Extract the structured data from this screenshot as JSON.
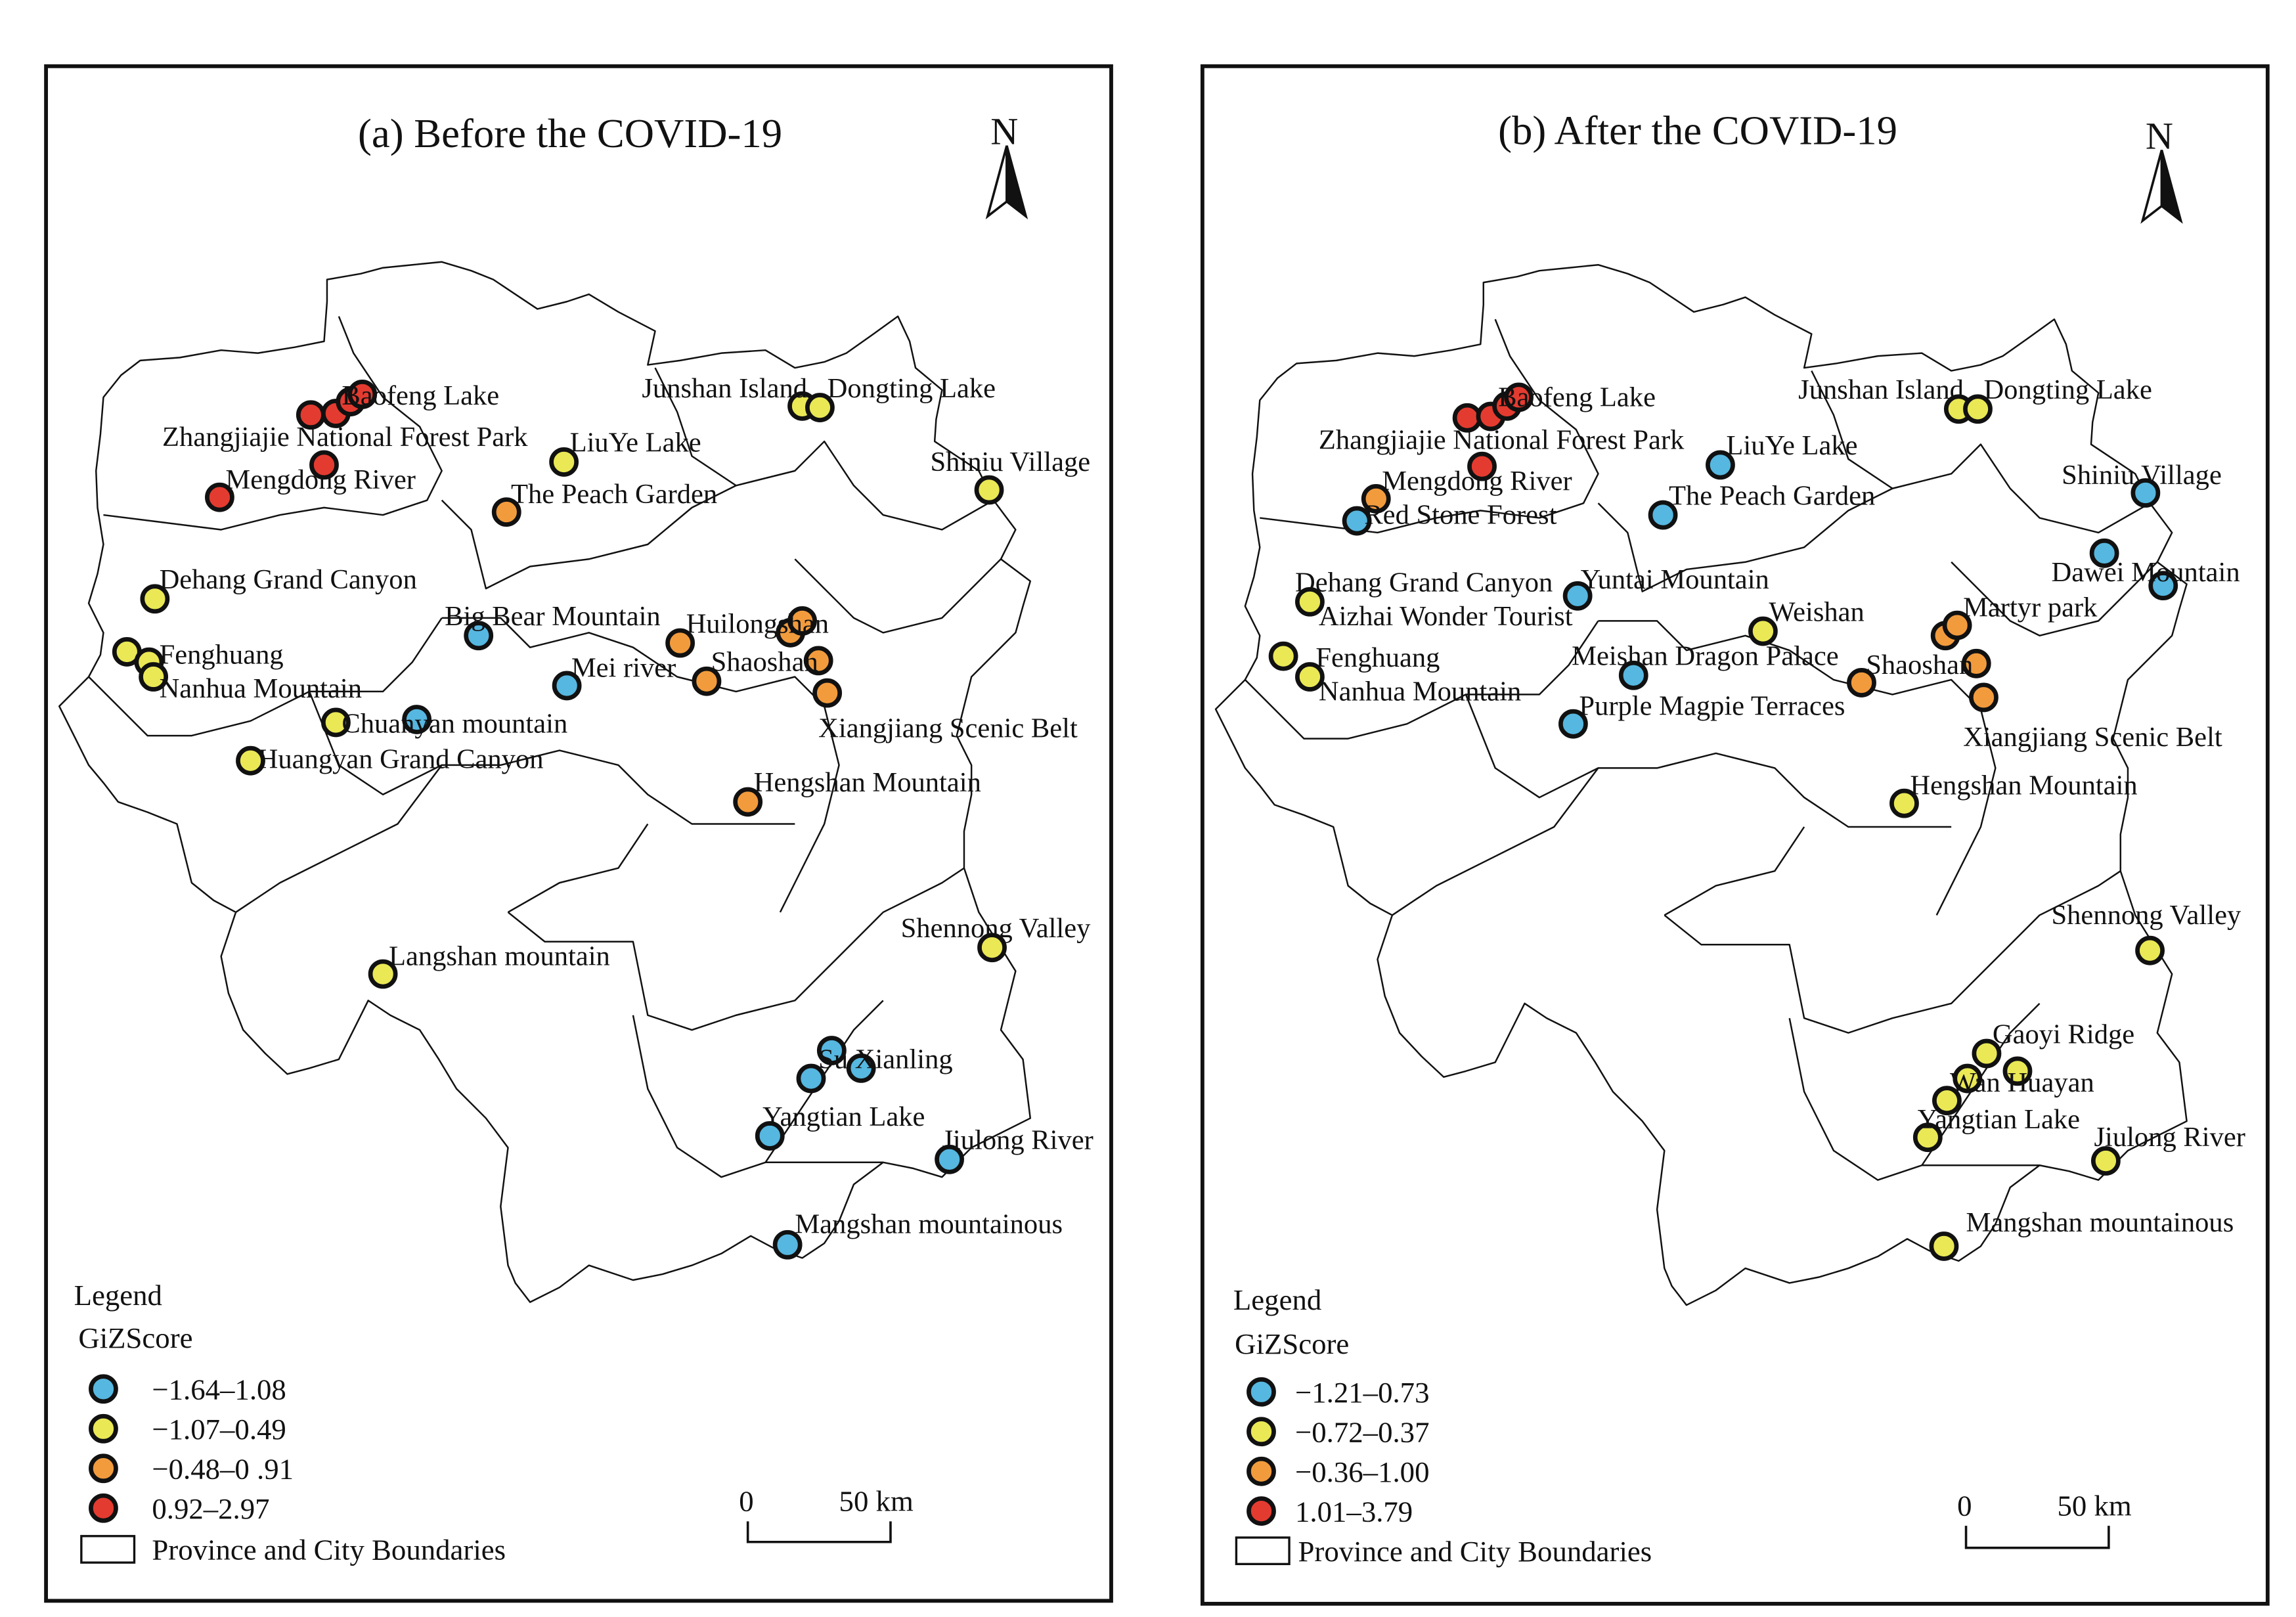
{
  "legend_colors": {
    "class_0": "#56b7e0",
    "class_1": "#eae855",
    "class_2": "#f29b3d",
    "class_3": "#e43b30"
  },
  "north_label": "N",
  "panels": [
    {
      "title": "(a) Before the COVID-19",
      "legend": {
        "heading": "Legend",
        "field": "GiZScore",
        "classes": [
          "−1.64–1.08",
          "−1.07–0.49",
          "−0.48–0 .91",
          "0.92–2.97"
        ],
        "boundary_label": "Province and City Boundaries"
      },
      "scale": {
        "start": "0",
        "end": "50 km"
      },
      "sites": [
        {
          "name": "Baofeng Lake",
          "classes": [
            3,
            3,
            3,
            3
          ]
        },
        {
          "name": "Zhangjiajie National Forest Park",
          "classes": [
            3
          ]
        },
        {
          "name": "Mengdong River",
          "classes": [
            3
          ]
        },
        {
          "name": "LiuYe Lake",
          "classes": [
            1
          ]
        },
        {
          "name": "The Peach Garden",
          "classes": [
            2
          ]
        },
        {
          "name": "Junshan Island",
          "classes": [
            1
          ]
        },
        {
          "name": "Dongting Lake",
          "classes": [
            1
          ]
        },
        {
          "name": "Shiniu Village",
          "classes": [
            1
          ]
        },
        {
          "name": "Dehang Grand Canyon",
          "classes": [
            1
          ]
        },
        {
          "name": "Big Bear Mountain",
          "classes": [
            0
          ]
        },
        {
          "name": "Huilongshan",
          "classes": [
            2,
            2,
            2
          ]
        },
        {
          "name": "Mei river",
          "classes": [
            0
          ]
        },
        {
          "name": "Shaoshan",
          "classes": [
            2,
            2,
            2
          ]
        },
        {
          "name": "Fenghuang",
          "classes": [
            1,
            1
          ]
        },
        {
          "name": "Nanhua Mountain",
          "classes": [
            1
          ]
        },
        {
          "name": "Chuanyan mountain",
          "classes": [
            1,
            0
          ]
        },
        {
          "name": "Huangyan Grand Canyon",
          "classes": [
            1
          ]
        },
        {
          "name": "Xiangjiang Scenic Belt",
          "classes": []
        },
        {
          "name": "Hengshan Mountain",
          "classes": [
            2
          ]
        },
        {
          "name": "Shennong Valley",
          "classes": [
            1
          ]
        },
        {
          "name": "Langshan mountain",
          "classes": [
            1
          ]
        },
        {
          "name": "Su Xianling",
          "classes": [
            0,
            0,
            0
          ]
        },
        {
          "name": "Yangtian Lake",
          "classes": [
            0
          ]
        },
        {
          "name": "Jiulong River",
          "classes": [
            0
          ]
        },
        {
          "name": "Mangshan mountainous",
          "classes": [
            0
          ]
        }
      ]
    },
    {
      "title": "(b) After  the COVID-19",
      "legend": {
        "heading": "Legend",
        "field": "GiZScore",
        "classes": [
          "−1.21–0.73",
          "−0.72–0.37",
          "−0.36–1.00",
          "1.01–3.79"
        ],
        "boundary_label": "Province and City Boundaries"
      },
      "scale": {
        "start": "0",
        "end": "50 km"
      },
      "sites": [
        {
          "name": "Baofeng Lake",
          "classes": [
            3,
            3,
            3,
            3
          ]
        },
        {
          "name": "Zhangjiajie National Forest Park",
          "classes": [
            3
          ]
        },
        {
          "name": "Mengdong River",
          "classes": [
            2
          ]
        },
        {
          "name": "Red Stone Forest",
          "classes": [
            0
          ]
        },
        {
          "name": "LiuYe Lake",
          "classes": [
            0
          ]
        },
        {
          "name": "The Peach Garden",
          "classes": [
            0
          ]
        },
        {
          "name": "Junshan Island",
          "classes": [
            1
          ]
        },
        {
          "name": "Dongting Lake",
          "classes": [
            1
          ]
        },
        {
          "name": "Shiniu Village",
          "classes": [
            0
          ]
        },
        {
          "name": "Dawei Mountain",
          "classes": [
            0,
            0
          ]
        },
        {
          "name": "Dehang Grand Canyon",
          "classes": [
            1
          ]
        },
        {
          "name": "Yuntai Mountain",
          "classes": [
            0
          ]
        },
        {
          "name": "Aizhai Wonder Tourist",
          "classes": []
        },
        {
          "name": "Weishan",
          "classes": [
            1
          ]
        },
        {
          "name": "Martyr park",
          "classes": [
            2,
            2
          ]
        },
        {
          "name": "Fenghuang",
          "classes": [
            1
          ]
        },
        {
          "name": "Nanhua Mountain",
          "classes": [
            1
          ]
        },
        {
          "name": "Meishan Dragon Palace",
          "classes": [
            0
          ]
        },
        {
          "name": "Shaoshan",
          "classes": [
            2,
            2,
            2
          ]
        },
        {
          "name": "Purple Magpie Terraces",
          "classes": [
            0
          ]
        },
        {
          "name": "Xiangjiang Scenic Belt",
          "classes": []
        },
        {
          "name": "Hengshan Mountain",
          "classes": [
            1
          ]
        },
        {
          "name": "Shennong Valley",
          "classes": [
            1
          ]
        },
        {
          "name": "Gaoyi Ridge",
          "classes": [
            1,
            1
          ]
        },
        {
          "name": "Wan Huayan",
          "classes": [
            1,
            1
          ]
        },
        {
          "name": "Yangtian Lake",
          "classes": [
            1
          ]
        },
        {
          "name": "Jiulong River",
          "classes": [
            1
          ]
        },
        {
          "name": "Mangshan mountainous",
          "classes": [
            1
          ]
        }
      ]
    }
  ]
}
